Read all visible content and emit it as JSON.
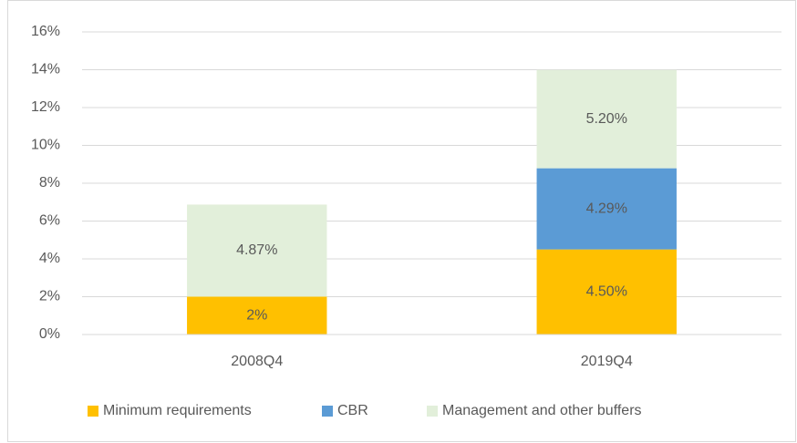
{
  "chart_data": {
    "type": "stacked_bar",
    "categories": [
      "2008Q4",
      "2019Q4"
    ],
    "series": [
      {
        "name": "Minimum requirements",
        "color": "#ffc000",
        "values": [
          2,
          4.5
        ],
        "value_labels": [
          "2%",
          "4.50%"
        ]
      },
      {
        "name": "CBR",
        "color": "#5b9bd5",
        "values": [
          null,
          4.29
        ],
        "value_labels": [
          null,
          "4.29%"
        ]
      },
      {
        "name": "Management and other buffers",
        "color": "#e2efda",
        "values": [
          4.87,
          5.2
        ],
        "value_labels": [
          "4.87%",
          "5.20%"
        ]
      }
    ],
    "ylim": [
      0,
      16
    ],
    "yticks": [
      {
        "value": 0,
        "label": "0%"
      },
      {
        "value": 2,
        "label": "2%"
      },
      {
        "value": 4,
        "label": "4%"
      },
      {
        "value": 6,
        "label": "6%"
      },
      {
        "value": 8,
        "label": "8%"
      },
      {
        "value": 10,
        "label": "10%"
      },
      {
        "value": 12,
        "label": "12%"
      },
      {
        "value": 14,
        "label": "14%"
      },
      {
        "value": 16,
        "label": "16%"
      }
    ],
    "grid": true,
    "legend": "bottom"
  }
}
